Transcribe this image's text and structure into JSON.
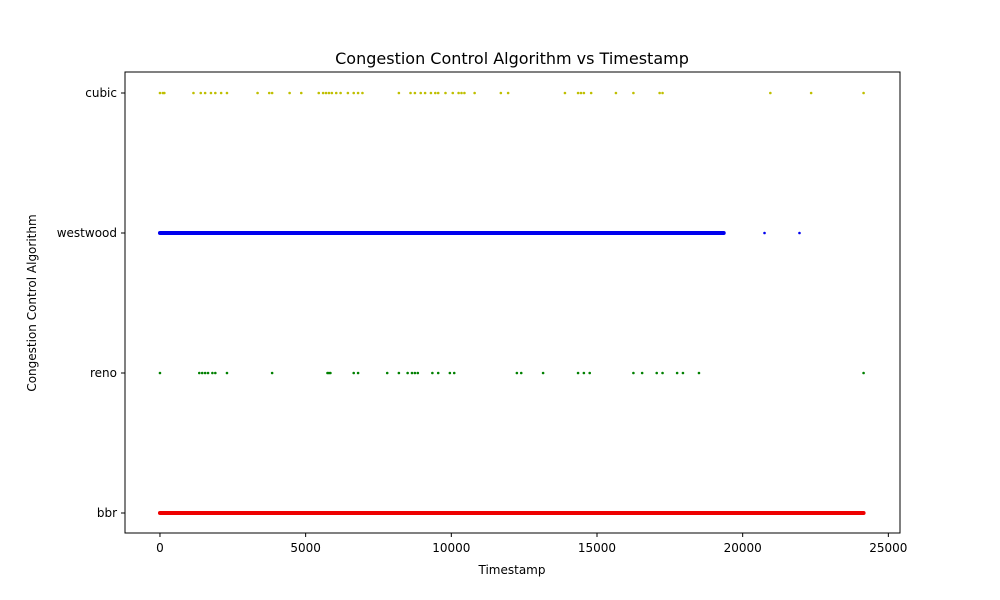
{
  "chart_data": {
    "type": "scatter",
    "title": "Congestion Control Algorithm vs Timestamp",
    "xlabel": "Timestamp",
    "ylabel": "Congestion Control Algorithm",
    "xlim": [
      -1200,
      25400
    ],
    "x_ticks": [
      0,
      5000,
      10000,
      15000,
      20000,
      25000
    ],
    "categories": [
      "bbr",
      "reno",
      "westwood",
      "cubic"
    ],
    "grid": false,
    "series": [
      {
        "category": "cubic",
        "color": "#bfbf00",
        "x": [
          0,
          100,
          150,
          1150,
          1400,
          1550,
          1750,
          1900,
          2100,
          2300,
          3350,
          3750,
          3850,
          4450,
          4850,
          5450,
          5600,
          5700,
          5800,
          5900,
          6050,
          6200,
          6450,
          6650,
          6800,
          6950,
          8200,
          8600,
          8750,
          8950,
          9100,
          9300,
          9450,
          9550,
          9800,
          10050,
          10250,
          10350,
          10450,
          10800,
          11700,
          11950,
          13900,
          14350,
          14450,
          14550,
          14800,
          15650,
          16250,
          17150,
          17250,
          20950,
          22350,
          24150
        ]
      },
      {
        "category": "westwood",
        "color": "#0000ee",
        "segments": [
          [
            0,
            19350
          ]
        ],
        "x": [
          20750,
          21950
        ]
      },
      {
        "category": "reno",
        "color": "#008000",
        "x": [
          0,
          1350,
          1450,
          1550,
          1650,
          1800,
          1900,
          2300,
          3850,
          5750,
          5800,
          5850,
          6650,
          6800,
          7800,
          8200,
          8500,
          8650,
          8750,
          8850,
          9350,
          9550,
          9950,
          10100,
          12250,
          12400,
          13150,
          14350,
          14550,
          14750,
          16250,
          16550,
          17050,
          17250,
          17750,
          17950,
          18500,
          24150
        ]
      },
      {
        "category": "bbr",
        "color": "#ee0000",
        "segments": [
          [
            0,
            24150
          ]
        ],
        "x": []
      }
    ]
  }
}
